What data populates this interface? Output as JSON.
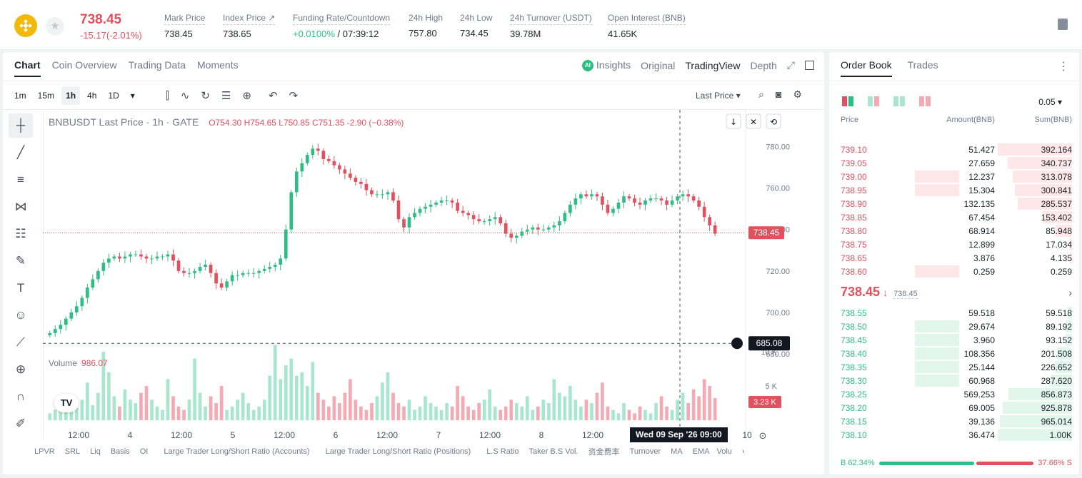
{
  "header": {
    "price": "738.45",
    "change": "-15.17(-2.01%)",
    "stats": [
      {
        "label": "Mark Price",
        "value": "738.45"
      },
      {
        "label": "Index Price ↗",
        "value": "738.65"
      },
      {
        "label": "Funding Rate/Countdown",
        "value_green": "+0.0100%",
        "value": " / 07:39:12"
      },
      {
        "label": "24h High",
        "value": "757.80"
      },
      {
        "label": "24h Low",
        "value": "734.45"
      },
      {
        "label": "24h Turnover (USDT)",
        "value": "39.78M"
      },
      {
        "label": "Open Interest (BNB)",
        "value": "41.65K"
      }
    ]
  },
  "chart_tabs": [
    "Chart",
    "Coin Overview",
    "Trading Data",
    "Moments"
  ],
  "view_tabs": {
    "insights": "Insights",
    "original": "Original",
    "tradingview": "TradingView",
    "depth": "Depth"
  },
  "intervals": [
    "1m",
    "15m",
    "1h",
    "4h",
    "1D"
  ],
  "price_type": "Last Price",
  "legend": {
    "symbol": "BNBUSDT Last Price · 1h · GATE",
    "ohlc": "O754.30 H754.65 L750.85 C751.35 -2.90 (−0.38%)"
  },
  "volume": {
    "label": "Volume",
    "value": "986.07"
  },
  "crosshair_date": "Wed 09 Sep '26   09:00",
  "indicators": [
    "LPVR",
    "SRL",
    "Liq",
    "Basis",
    "OI",
    "Large Trader Long/Short Ratio (Accounts)",
    "Large Trader Long/Short Ratio (Positions)",
    "L.S Ratio",
    "Taker B.S Vol.",
    "资金费率",
    "Turnover",
    "MA",
    "EMA",
    "Volu"
  ],
  "chart_data": {
    "type": "candlestick",
    "title": "BNBUSDT Last Price · 1h · GATE",
    "ylim": [
      680,
      785
    ],
    "y_ticks": [
      "780.00",
      "760.00",
      "740.00",
      "720.00",
      "700.00",
      "680.00"
    ],
    "x_ticks": [
      "12:00",
      "4",
      "12:00",
      "5",
      "12:00",
      "6",
      "12:00",
      "7",
      "12:00",
      "8",
      "12:00",
      "10",
      "09:00"
    ],
    "last_price": "738.45",
    "crosshair_price": "685.08",
    "volume_ticks": [
      "10 K",
      "5 K"
    ],
    "last_volume": "3.23 K",
    "close_path": [
      690,
      692,
      694,
      697,
      700,
      703,
      707,
      712,
      716,
      720,
      724,
      726,
      727,
      726,
      727,
      728,
      728,
      727,
      726,
      726,
      727,
      727,
      728,
      725,
      720,
      719,
      719,
      720,
      722,
      723,
      719,
      714,
      712,
      715,
      718,
      718,
      719,
      719,
      719,
      720,
      721,
      722,
      723,
      726,
      740,
      758,
      768,
      772,
      776,
      779,
      778,
      774,
      773,
      771,
      769,
      767,
      765,
      763,
      762,
      759,
      757,
      757,
      757,
      758,
      754,
      745,
      741,
      746,
      748,
      750,
      751,
      752,
      753,
      754,
      754,
      753,
      749,
      748,
      747,
      745,
      744,
      744,
      745,
      746,
      743,
      738,
      736,
      737,
      739,
      740,
      741,
      740,
      740,
      741,
      742,
      744,
      748,
      752,
      755,
      757,
      756,
      757,
      756,
      752,
      748,
      750,
      753,
      756,
      755,
      753,
      752,
      754,
      755,
      755,
      754,
      752,
      754,
      756,
      757,
      756,
      754,
      751,
      746,
      742,
      738
    ],
    "volume_path": [
      1.0,
      1.5,
      2.0,
      1.3,
      2.5,
      1.8,
      3.0,
      5.5,
      2.2,
      4.0,
      10.0,
      7.0,
      3.5,
      2.0,
      4.5,
      3.0,
      2.5,
      4.0,
      5.0,
      3.0,
      2.0,
      1.5,
      6.0,
      3.5,
      2.0,
      1.5,
      3.0,
      9.0,
      4.0,
      2.0,
      3.5,
      2.5,
      5.0,
      1.5,
      2.0,
      3.0,
      4.0,
      2.5,
      1.5,
      2.0,
      3.0,
      6.5,
      11.0,
      6.0,
      8.0,
      9.0,
      6.5,
      7.0,
      5.0,
      8.5,
      4.0,
      3.0,
      2.0,
      3.5,
      2.5,
      4.0,
      6.0,
      3.0,
      2.0,
      1.5,
      2.5,
      3.5,
      5.5,
      7.0,
      4.0,
      2.5,
      2.0,
      3.0,
      1.5,
      2.0,
      3.5,
      2.5,
      2.0,
      1.5,
      2.5,
      2.0,
      5.0,
      3.5,
      2.0,
      1.5,
      2.5,
      3.0,
      4.5,
      2.0,
      1.5,
      2.0,
      3.0,
      2.5,
      2.0,
      3.5,
      1.5,
      2.0,
      3.0,
      2.5,
      6.0,
      4.0,
      3.5,
      5.0,
      3.0,
      2.0,
      3.0,
      2.5,
      4.0,
      5.5,
      2.0,
      1.5,
      1.0,
      2.5,
      1.5,
      1.0,
      2.0,
      1.5,
      1.0,
      2.5,
      3.5,
      2.0,
      1.5,
      3.0,
      4.0,
      2.5,
      4.5,
      3.5,
      6.0,
      5.0,
      3.23
    ]
  },
  "orderbook": {
    "tabs": [
      "Order Book",
      "Trades"
    ],
    "precision": "0.05 ▾",
    "headers": [
      "Price",
      "Amount(BNB)",
      "Sum(BNB)"
    ],
    "asks": [
      {
        "price": "739.10",
        "amount": "51.427",
        "sum": "392.164",
        "amt_frac": 0.0,
        "sum_frac": 1.0
      },
      {
        "price": "739.05",
        "amount": "27.659",
        "sum": "340.737",
        "amt_frac": 0.0,
        "sum_frac": 0.87
      },
      {
        "price": "739.00",
        "amount": "12.237",
        "sum": "313.078",
        "amt_frac": 0.5,
        "sum_frac": 0.8
      },
      {
        "price": "738.95",
        "amount": "15.304",
        "sum": "300.841",
        "amt_frac": 0.5,
        "sum_frac": 0.77
      },
      {
        "price": "738.90",
        "amount": "132.135",
        "sum": "285.537",
        "amt_frac": 0.0,
        "sum_frac": 0.73
      },
      {
        "price": "738.85",
        "amount": "67.454",
        "sum": "153.402",
        "amt_frac": 0.0,
        "sum_frac": 0.39
      },
      {
        "price": "738.80",
        "amount": "68.914",
        "sum": "85.948",
        "amt_frac": 0.0,
        "sum_frac": 0.22
      },
      {
        "price": "738.75",
        "amount": "12.899",
        "sum": "17.034",
        "amt_frac": 0.0,
        "sum_frac": 0.04
      },
      {
        "price": "738.65",
        "amount": "3.876",
        "sum": "4.135",
        "amt_frac": 0.0,
        "sum_frac": 0.01
      },
      {
        "price": "738.60",
        "amount": "0.259",
        "sum": "0.259",
        "amt_frac": 0.5,
        "sum_frac": 0.0
      }
    ],
    "mid_price": "738.45",
    "mid_arrow": "↓",
    "mark_price": "738.45",
    "bids": [
      {
        "price": "738.55",
        "amount": "59.518",
        "sum": "59.518",
        "amt_frac": 0.0,
        "sum_frac": 0.06
      },
      {
        "price": "738.50",
        "amount": "29.674",
        "sum": "89.192",
        "amt_frac": 0.5,
        "sum_frac": 0.09
      },
      {
        "price": "738.45",
        "amount": "3.960",
        "sum": "93.152",
        "amt_frac": 0.5,
        "sum_frac": 0.09
      },
      {
        "price": "738.40",
        "amount": "108.356",
        "sum": "201.508",
        "amt_frac": 0.5,
        "sum_frac": 0.2
      },
      {
        "price": "738.35",
        "amount": "25.144",
        "sum": "226.652",
        "amt_frac": 0.5,
        "sum_frac": 0.23
      },
      {
        "price": "738.30",
        "amount": "60.968",
        "sum": "287.620",
        "amt_frac": 0.5,
        "sum_frac": 0.29
      },
      {
        "price": "738.25",
        "amount": "569.253",
        "sum": "856.873",
        "amt_frac": 0.0,
        "sum_frac": 0.86
      },
      {
        "price": "738.20",
        "amount": "69.005",
        "sum": "925.878",
        "amt_frac": 0.0,
        "sum_frac": 0.93
      },
      {
        "price": "738.15",
        "amount": "39.136",
        "sum": "965.014",
        "amt_frac": 0.0,
        "sum_frac": 0.97
      },
      {
        "price": "738.10",
        "amount": "36.474",
        "sum": "1.00K",
        "amt_frac": 0.0,
        "sum_frac": 1.0
      }
    ],
    "buy_ratio": "B 62.34%",
    "sell_ratio": "37.66% S",
    "buy_frac": 0.6234
  },
  "colors": {
    "up": "#2ebd85",
    "down": "#e0505d",
    "up_light": "#a8e6cf",
    "down_light": "#f3aab2",
    "ask_bg": "#fde7e9",
    "bid_bg": "#e3f6ee"
  }
}
